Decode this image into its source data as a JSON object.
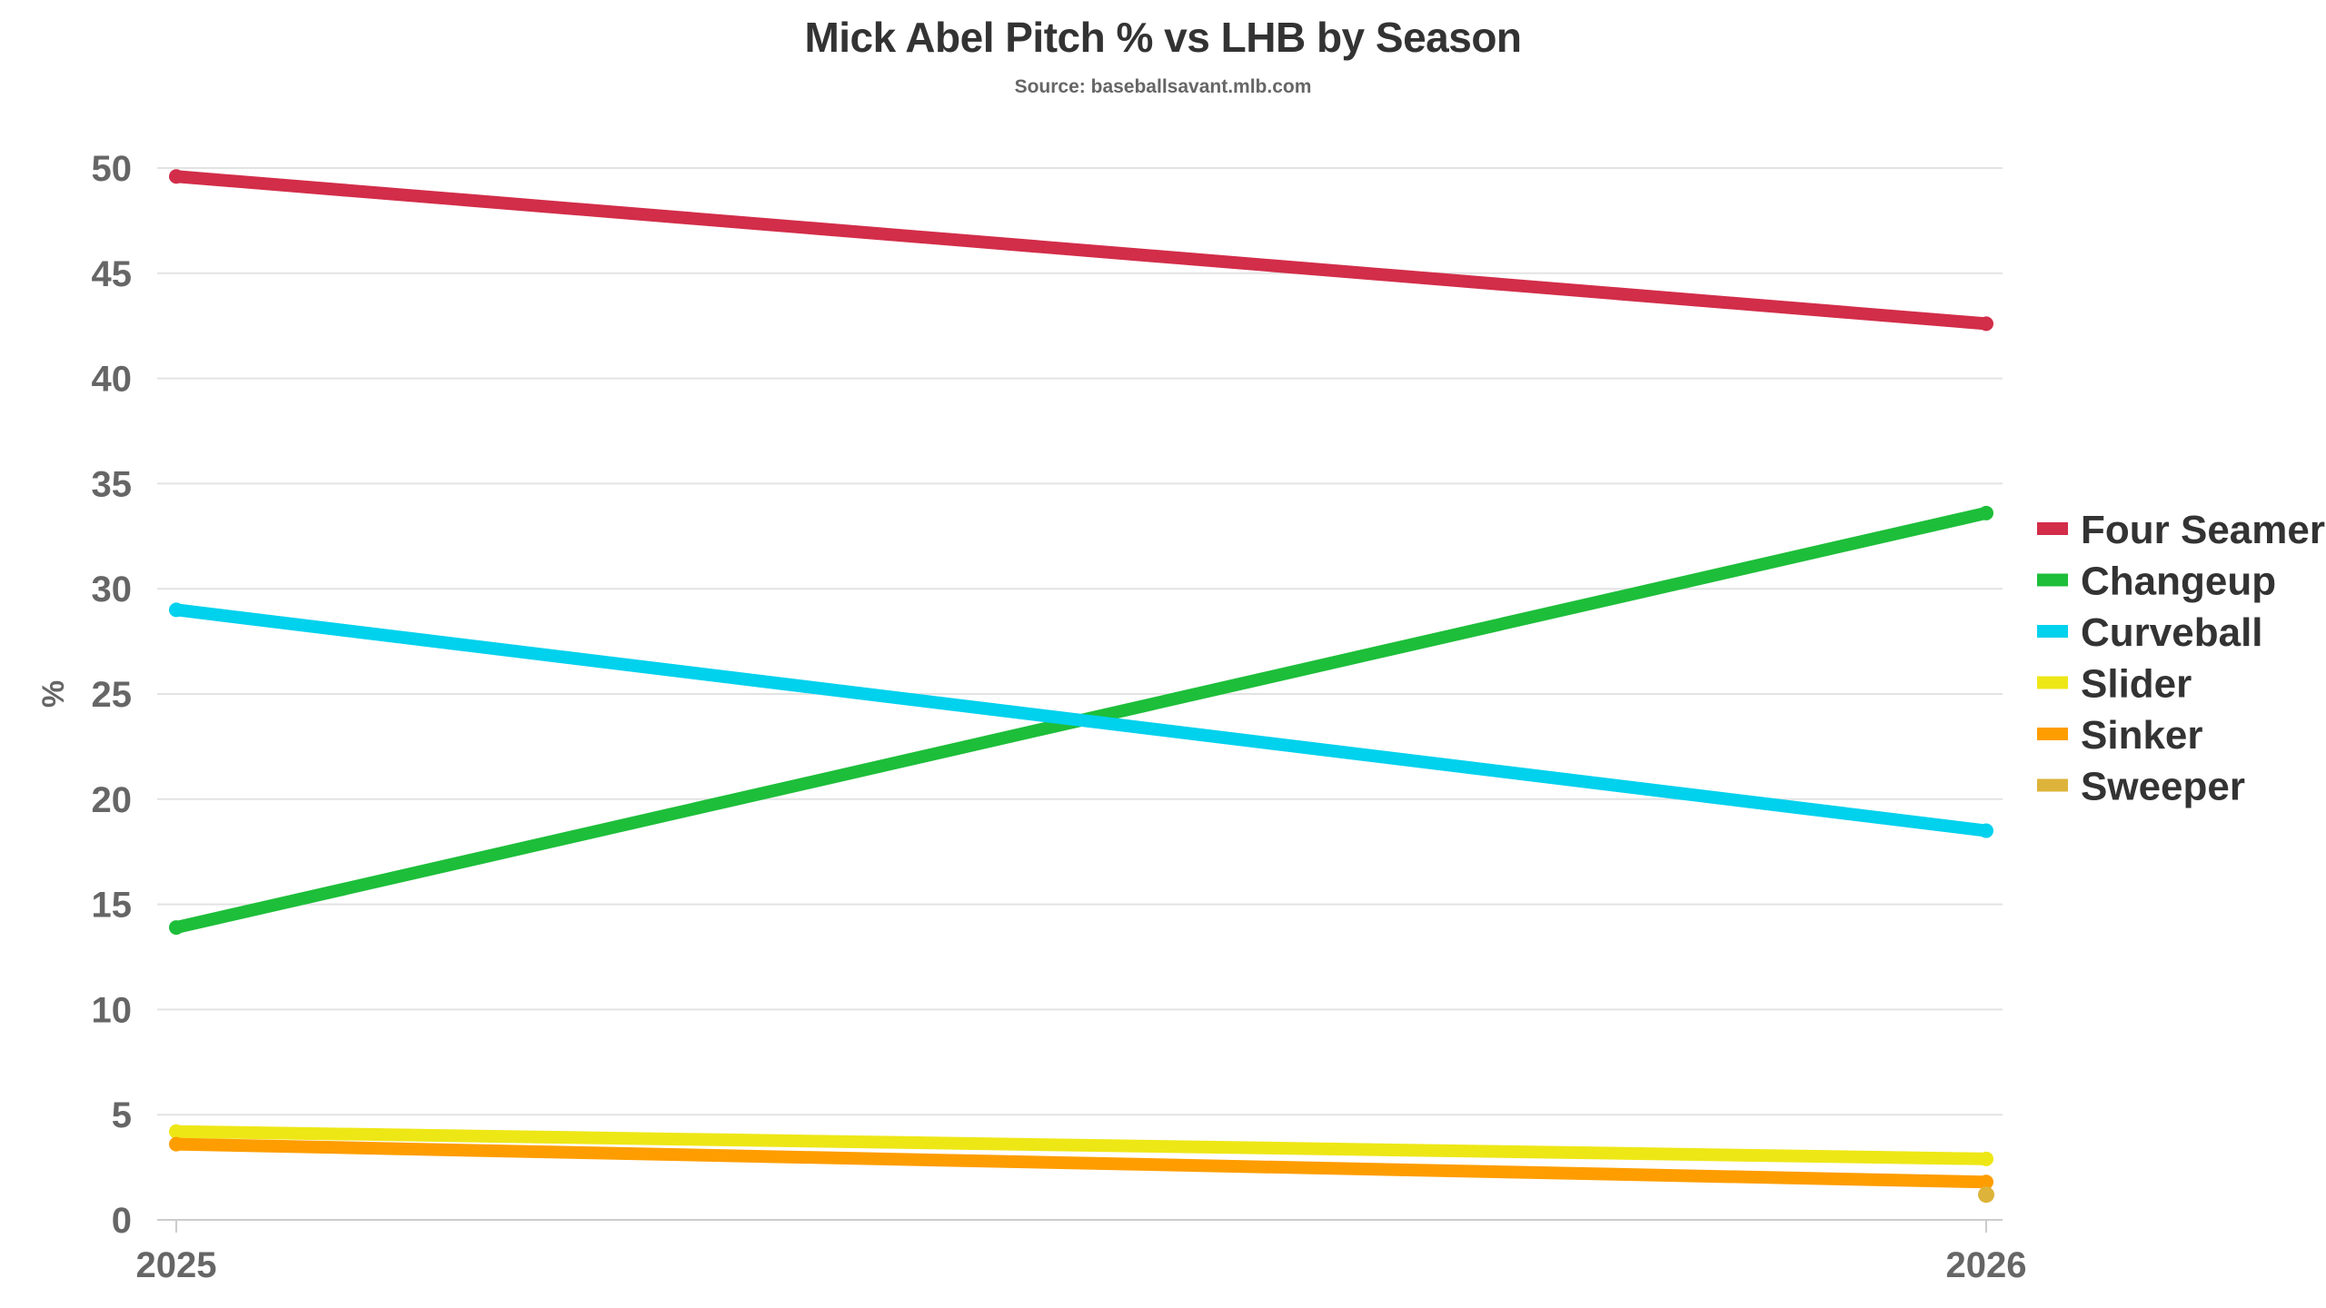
{
  "chart_data": {
    "type": "line",
    "title": "Mick Abel Pitch % vs LHB by Season",
    "subtitle": "Source: baseballsavant.mlb.com",
    "xlabel": "",
    "ylabel": "%",
    "categories": [
      "2025",
      "2026"
    ],
    "ylim": [
      0,
      50
    ],
    "yticks": [
      0,
      5,
      10,
      15,
      20,
      25,
      30,
      35,
      40,
      45,
      50
    ],
    "grid": true,
    "legend_position": "right",
    "series": [
      {
        "name": "Four Seamer",
        "color": "#d22d49",
        "values": [
          49.6,
          42.6
        ]
      },
      {
        "name": "Changeup",
        "color": "#1dbe3a",
        "values": [
          13.9,
          33.6
        ]
      },
      {
        "name": "Curveball",
        "color": "#00d1ed",
        "values": [
          29.0,
          18.5
        ]
      },
      {
        "name": "Slider",
        "color": "#eee716",
        "values": [
          4.2,
          2.9
        ]
      },
      {
        "name": "Sinker",
        "color": "#fe9d00",
        "values": [
          3.6,
          1.8
        ]
      },
      {
        "name": "Sweeper",
        "color": "#ddb33a",
        "values": [
          null,
          1.2
        ]
      }
    ]
  }
}
